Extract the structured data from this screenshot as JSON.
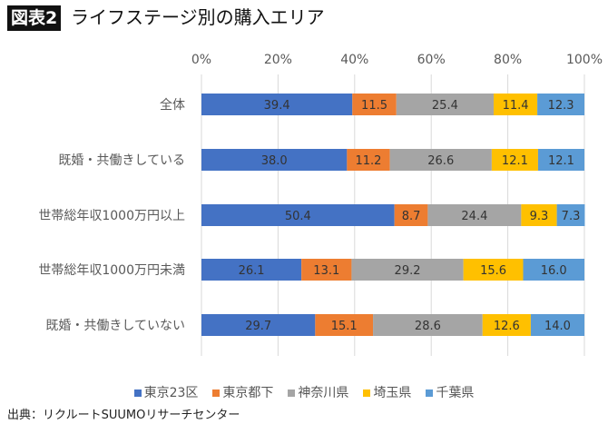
{
  "chart_data": {
    "type": "bar",
    "orientation": "horizontal-stacked-100",
    "title_badge": "図表2",
    "title": "ライフステージ別の購入エリア",
    "xlim": [
      0,
      100
    ],
    "xticks": [
      "0%",
      "20%",
      "40%",
      "60%",
      "80%",
      "100%"
    ],
    "categories": [
      "全体",
      "既婚・共働きしている",
      "世帯総年収1000万円以上",
      "世帯総年収1000万円未満",
      "既婚・共働きしていない"
    ],
    "series": [
      {
        "name": "東京23区",
        "color": "#4472C4",
        "values": [
          39.4,
          38.0,
          50.4,
          26.1,
          29.7
        ]
      },
      {
        "name": "東京都下",
        "color": "#ED7D31",
        "values": [
          11.5,
          11.2,
          8.7,
          13.1,
          15.1
        ]
      },
      {
        "name": "神奈川県",
        "color": "#A5A5A5",
        "values": [
          25.4,
          26.6,
          24.4,
          29.2,
          28.6
        ]
      },
      {
        "name": "埼玉県",
        "color": "#FFC000",
        "values": [
          11.4,
          12.1,
          9.3,
          15.6,
          12.6
        ]
      },
      {
        "name": "千葉県",
        "color": "#5B9BD5",
        "values": [
          12.3,
          12.1,
          7.3,
          16.0,
          14.0
        ]
      }
    ],
    "legend_position": "bottom",
    "grid": true,
    "source": "出典：リクルートSUUMOリサーチセンター"
  }
}
